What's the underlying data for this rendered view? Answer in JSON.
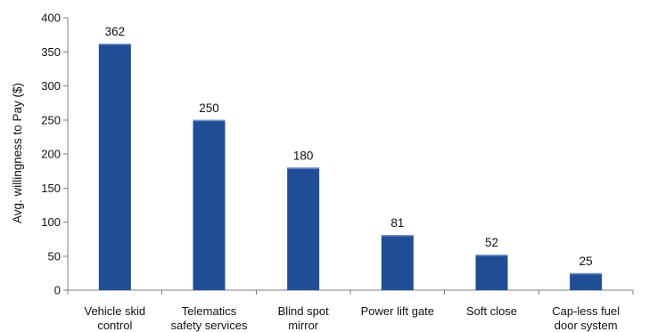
{
  "chart_data": {
    "type": "bar",
    "categories": [
      [
        "Vehicle skid",
        "control"
      ],
      [
        "Telematics",
        "safety services"
      ],
      [
        "Blind spot",
        "mirror"
      ],
      [
        "Power lift gate"
      ],
      [
        "Soft close"
      ],
      [
        "Cap-less fuel",
        "door system"
      ]
    ],
    "values": [
      362,
      250,
      180,
      81,
      52,
      25
    ],
    "data_labels": [
      "362",
      "250",
      "180",
      "81",
      "52",
      "25"
    ],
    "ylabel": "Avg. willingness to Pay ($)",
    "xlabel": "",
    "title": "",
    "ylim": [
      0,
      400
    ],
    "yticks": [
      0,
      50,
      100,
      150,
      200,
      250,
      300,
      350,
      400
    ],
    "grid": false,
    "legend": "none",
    "colors": {
      "bar": "#1f4e96",
      "bar_top": "#6f8fc4",
      "axis": "#7f7f7f",
      "text": "#111111"
    }
  }
}
